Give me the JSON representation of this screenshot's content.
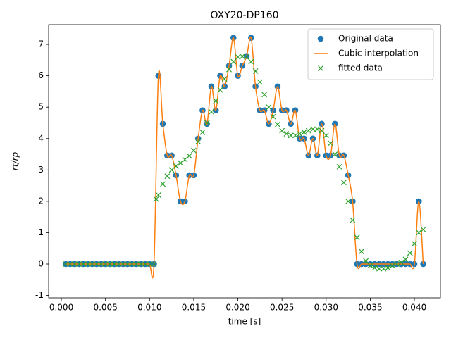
{
  "chart_data": {
    "type": "line",
    "title": "OXY20-DP160",
    "xlabel": "time [s]",
    "ylabel": "rt/rp",
    "xlim": [
      -0.00144,
      0.04295
    ],
    "ylim": [
      -1.077,
      7.63
    ],
    "xticks": [
      {
        "value": 0,
        "label": "0.000"
      },
      {
        "value": 0.005,
        "label": "0.005"
      },
      {
        "value": 0.01,
        "label": "0.010"
      },
      {
        "value": 0.015,
        "label": "0.015"
      },
      {
        "value": 0.02,
        "label": "0.020"
      },
      {
        "value": 0.025,
        "label": "0.025"
      },
      {
        "value": 0.03,
        "label": "0.030"
      },
      {
        "value": 0.035,
        "label": "0.035"
      },
      {
        "value": 0.04,
        "label": "0.040"
      }
    ],
    "yticks": [
      -1,
      0,
      1,
      2,
      3,
      4,
      5,
      6,
      7
    ],
    "legend": "upper right",
    "series": [
      {
        "name": "Original data",
        "color": "#1f77b4",
        "marker": "o",
        "x": [
          0.0005,
          0.001,
          0.0015,
          0.002,
          0.0025,
          0.003,
          0.0035,
          0.004,
          0.0045,
          0.005,
          0.0055,
          0.006,
          0.0065,
          0.007,
          0.0075,
          0.008,
          0.0085,
          0.009,
          0.0095,
          0.01,
          0.0105,
          0.011,
          0.0115,
          0.012,
          0.0125,
          0.013,
          0.0135,
          0.014,
          0.0145,
          0.015,
          0.0155,
          0.016,
          0.0165,
          0.017,
          0.0175,
          0.018,
          0.0185,
          0.019,
          0.0195,
          0.02,
          0.0205,
          0.021,
          0.0215,
          0.022,
          0.0225,
          0.023,
          0.0235,
          0.024,
          0.0245,
          0.025,
          0.0255,
          0.026,
          0.0265,
          0.027,
          0.0275,
          0.028,
          0.0285,
          0.029,
          0.0295,
          0.03,
          0.0305,
          0.031,
          0.0315,
          0.032,
          0.0325,
          0.033,
          0.0335,
          0.034,
          0.0345,
          0.035,
          0.0355,
          0.036,
          0.0365,
          0.037,
          0.0375,
          0.038,
          0.0385,
          0.039,
          0.0395,
          0.04,
          0.0405,
          0.041
        ],
        "values": [
          0,
          0,
          0,
          0,
          0,
          0,
          0,
          0,
          0,
          0,
          0,
          0,
          0,
          0,
          0,
          0,
          0,
          0,
          0,
          0,
          0,
          6.0,
          4.47,
          3.46,
          3.46,
          2.83,
          2.0,
          2.0,
          2.83,
          2.83,
          4.0,
          4.9,
          4.47,
          5.66,
          4.9,
          6.0,
          5.66,
          6.32,
          7.21,
          6.0,
          6.32,
          6.63,
          7.21,
          5.66,
          4.9,
          4.9,
          4.47,
          4.9,
          5.66,
          4.9,
          4.9,
          4.47,
          4.9,
          4.0,
          4.0,
          3.46,
          4.0,
          3.46,
          4.47,
          3.46,
          3.46,
          4.47,
          3.46,
          3.46,
          2.83,
          2.0,
          0,
          0,
          0,
          0,
          0,
          0,
          0,
          0,
          0,
          0,
          0,
          0,
          0,
          0,
          2.0,
          0
        ]
      },
      {
        "name": "Cubic interpolation",
        "color": "#ff7f0e",
        "marker": "line",
        "x": [
          0.0005,
          0.001,
          0.0015,
          0.002,
          0.0025,
          0.003,
          0.0035,
          0.004,
          0.0045,
          0.005,
          0.0055,
          0.006,
          0.0065,
          0.007,
          0.0075,
          0.008,
          0.0085,
          0.009,
          0.0095,
          0.01,
          0.0105,
          0.011,
          0.0115,
          0.012,
          0.0125,
          0.013,
          0.0135,
          0.014,
          0.0145,
          0.015,
          0.0155,
          0.016,
          0.0165,
          0.017,
          0.0175,
          0.018,
          0.0185,
          0.019,
          0.0195,
          0.02,
          0.0205,
          0.021,
          0.0215,
          0.022,
          0.0225,
          0.023,
          0.0235,
          0.024,
          0.0245,
          0.025,
          0.0255,
          0.026,
          0.0265,
          0.027,
          0.0275,
          0.028,
          0.0285,
          0.029,
          0.0295,
          0.03,
          0.0305,
          0.031,
          0.0315,
          0.032,
          0.0325,
          0.033,
          0.0335,
          0.034,
          0.0345,
          0.035,
          0.0355,
          0.036,
          0.0365,
          0.037,
          0.0375,
          0.038,
          0.0385,
          0.039,
          0.0395,
          0.04,
          0.0405,
          0.041
        ],
        "values": [
          0,
          0,
          0,
          0,
          0,
          0,
          0,
          0,
          0,
          0,
          0,
          0,
          0,
          0,
          0,
          0,
          0,
          0,
          0,
          0,
          0,
          6.0,
          4.47,
          3.46,
          3.46,
          2.83,
          2.0,
          2.0,
          2.83,
          2.83,
          4.0,
          4.9,
          4.47,
          5.66,
          4.9,
          6.0,
          5.66,
          6.32,
          7.21,
          6.0,
          6.32,
          6.63,
          7.21,
          5.66,
          4.9,
          4.9,
          4.47,
          4.9,
          5.66,
          4.9,
          4.9,
          4.47,
          4.9,
          4.0,
          4.0,
          3.46,
          4.0,
          3.46,
          4.47,
          3.46,
          3.46,
          4.47,
          3.46,
          3.46,
          2.83,
          2.0,
          0,
          0,
          0,
          0,
          0,
          0,
          0,
          0,
          0,
          0,
          0,
          0,
          0,
          0,
          2.0,
          0
        ]
      },
      {
        "name": "fitted data",
        "color": "#2ca02c",
        "marker": "x",
        "x": [
          0.0005,
          0.001,
          0.0015,
          0.002,
          0.0025,
          0.003,
          0.0035,
          0.004,
          0.0045,
          0.005,
          0.0055,
          0.006,
          0.0065,
          0.007,
          0.0075,
          0.008,
          0.0085,
          0.009,
          0.0095,
          0.01,
          0.0105,
          0.01075,
          0.011,
          0.0115,
          0.012,
          0.0125,
          0.013,
          0.0135,
          0.014,
          0.0145,
          0.015,
          0.0155,
          0.016,
          0.0165,
          0.017,
          0.0175,
          0.018,
          0.0185,
          0.019,
          0.0195,
          0.02,
          0.0205,
          0.021,
          0.0215,
          0.022,
          0.0225,
          0.023,
          0.0235,
          0.024,
          0.0245,
          0.025,
          0.0255,
          0.026,
          0.0265,
          0.027,
          0.0275,
          0.028,
          0.0285,
          0.029,
          0.0295,
          0.03,
          0.0305,
          0.031,
          0.0315,
          0.032,
          0.0325,
          0.033,
          0.0335,
          0.034,
          0.0345,
          0.035,
          0.0355,
          0.036,
          0.0365,
          0.037,
          0.0375,
          0.038,
          0.0385,
          0.039,
          0.0395,
          0.04,
          0.0405,
          0.041
        ],
        "values": [
          0,
          0,
          0,
          0,
          0,
          0,
          0,
          0,
          0,
          0,
          0,
          0,
          0,
          0,
          0,
          0,
          0,
          0,
          0,
          0,
          0,
          2.07,
          2.2,
          2.55,
          2.8,
          3.0,
          3.12,
          3.22,
          3.33,
          3.45,
          3.62,
          3.9,
          4.2,
          4.5,
          4.85,
          5.2,
          5.55,
          5.9,
          6.2,
          6.45,
          6.6,
          6.62,
          6.6,
          6.45,
          6.15,
          5.8,
          5.4,
          5.0,
          4.7,
          4.45,
          4.25,
          4.15,
          4.1,
          4.1,
          4.15,
          4.2,
          4.25,
          4.3,
          4.3,
          4.25,
          4.1,
          3.85,
          3.5,
          3.1,
          2.6,
          2.0,
          1.4,
          0.85,
          0.4,
          0.1,
          -0.05,
          -0.12,
          -0.15,
          -0.15,
          -0.12,
          -0.05,
          0.0,
          0.05,
          0.15,
          0.35,
          0.65,
          1.0,
          1.1
        ]
      }
    ]
  }
}
